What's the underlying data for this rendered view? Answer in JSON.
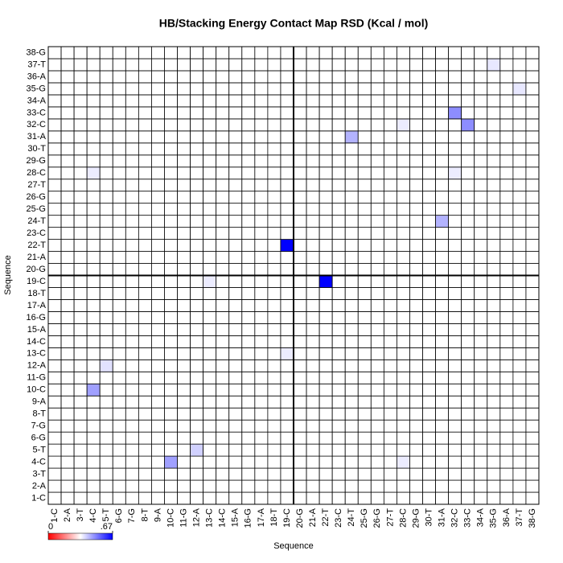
{
  "chart_data": {
    "type": "heatmap",
    "title": "HB/Stacking Energy Contact Map RSD (Kcal / mol)",
    "xlabel": "Sequence",
    "ylabel": "Sequence",
    "categories": [
      "1-C",
      "2-A",
      "3-T",
      "4-C",
      "5-T",
      "6-G",
      "7-G",
      "8-T",
      "9-A",
      "10-C",
      "11-G",
      "12-A",
      "13-C",
      "14-C",
      "15-A",
      "16-G",
      "17-A",
      "18-T",
      "19-C",
      "20-G",
      "21-A",
      "22-T",
      "23-C",
      "24-T",
      "25-G",
      "26-G",
      "27-T",
      "28-C",
      "29-G",
      "30-T",
      "31-A",
      "32-C",
      "33-C",
      "34-A",
      "35-G",
      "36-A",
      "37-T",
      "38-G"
    ],
    "color": "#0000ff",
    "zlim": [
      0,
      0.67
    ],
    "colorbar_ticks": [
      0,
      {
        "value": 0.67,
        "label": ".67"
      }
    ],
    "values": [
      [
        0,
        0,
        0,
        0,
        0,
        0,
        0,
        0,
        0,
        0,
        0,
        0,
        0,
        0,
        0,
        0,
        0,
        0,
        0,
        0,
        0,
        0,
        0,
        0,
        0,
        0,
        0,
        0,
        0,
        0,
        0,
        0,
        0,
        0,
        0,
        0,
        0,
        0
      ],
      [
        0,
        0,
        0,
        0,
        0,
        0,
        0,
        0,
        0,
        0,
        0,
        0,
        0,
        0,
        0,
        0,
        0,
        0,
        0,
        0,
        0,
        0,
        0,
        0,
        0,
        0,
        0,
        0,
        0,
        0,
        0,
        0,
        0,
        0,
        0,
        0,
        0,
        0
      ],
      [
        0,
        0,
        0,
        0,
        0,
        0,
        0,
        0,
        0,
        0,
        0,
        0,
        0,
        0,
        0,
        0,
        0,
        0,
        0,
        0,
        0,
        0,
        0,
        0,
        0,
        0,
        0,
        0,
        0,
        0,
        0,
        0,
        0,
        0,
        0,
        0,
        0,
        0
      ],
      [
        0,
        0,
        0,
        0,
        0,
        0,
        0,
        0,
        0,
        0.25,
        0,
        0,
        0,
        0,
        0,
        0,
        0,
        0,
        0,
        0,
        0,
        0,
        0,
        0,
        0,
        0,
        0,
        0.05,
        0,
        0,
        0,
        0,
        0,
        0,
        0,
        0,
        0,
        0
      ],
      [
        0,
        0,
        0,
        0,
        0,
        0,
        0,
        0,
        0,
        0,
        0,
        0.12,
        0,
        0,
        0,
        0,
        0,
        0,
        0,
        0,
        0,
        0,
        0,
        0,
        0,
        0,
        0,
        0,
        0,
        0,
        0,
        0,
        0,
        0,
        0,
        0,
        0,
        0
      ],
      [
        0,
        0,
        0,
        0,
        0,
        0,
        0,
        0,
        0,
        0,
        0,
        0,
        0,
        0,
        0,
        0,
        0,
        0,
        0,
        0,
        0,
        0,
        0,
        0,
        0,
        0,
        0,
        0,
        0,
        0,
        0,
        0,
        0,
        0,
        0,
        0,
        0,
        0
      ],
      [
        0,
        0,
        0,
        0,
        0,
        0,
        0,
        0,
        0,
        0,
        0,
        0,
        0,
        0,
        0,
        0,
        0,
        0,
        0,
        0,
        0,
        0,
        0,
        0,
        0,
        0,
        0,
        0,
        0,
        0,
        0,
        0,
        0,
        0,
        0,
        0,
        0,
        0
      ],
      [
        0,
        0,
        0,
        0,
        0,
        0,
        0,
        0,
        0,
        0,
        0,
        0,
        0,
        0,
        0,
        0,
        0,
        0,
        0,
        0,
        0,
        0,
        0,
        0,
        0,
        0,
        0,
        0,
        0,
        0,
        0,
        0,
        0,
        0,
        0,
        0,
        0,
        0
      ],
      [
        0,
        0,
        0,
        0,
        0,
        0,
        0,
        0,
        0,
        0,
        0,
        0,
        0,
        0,
        0,
        0,
        0,
        0,
        0,
        0,
        0,
        0,
        0,
        0,
        0,
        0,
        0,
        0,
        0,
        0,
        0,
        0,
        0,
        0,
        0,
        0,
        0,
        0
      ],
      [
        0,
        0,
        0,
        0.25,
        0,
        0,
        0,
        0,
        0,
        0,
        0,
        0,
        0,
        0,
        0,
        0,
        0,
        0,
        0,
        0,
        0,
        0,
        0,
        0,
        0,
        0,
        0,
        0,
        0,
        0,
        0,
        0,
        0,
        0,
        0,
        0,
        0,
        0
      ],
      [
        0,
        0,
        0,
        0,
        0,
        0,
        0,
        0,
        0,
        0,
        0,
        0,
        0,
        0,
        0,
        0,
        0,
        0,
        0,
        0,
        0,
        0,
        0,
        0,
        0,
        0,
        0,
        0,
        0,
        0,
        0,
        0,
        0,
        0,
        0,
        0,
        0,
        0
      ],
      [
        0,
        0,
        0,
        0,
        0.08,
        0,
        0,
        0,
        0,
        0,
        0,
        0,
        0,
        0,
        0,
        0,
        0,
        0,
        0,
        0,
        0,
        0,
        0,
        0,
        0,
        0,
        0,
        0,
        0,
        0,
        0,
        0,
        0,
        0,
        0,
        0,
        0,
        0
      ],
      [
        0,
        0,
        0,
        0,
        0,
        0,
        0,
        0,
        0,
        0,
        0,
        0,
        0,
        0,
        0,
        0,
        0,
        0,
        0.05,
        0,
        0,
        0,
        0,
        0,
        0,
        0,
        0,
        0,
        0,
        0,
        0,
        0,
        0,
        0,
        0,
        0,
        0,
        0
      ],
      [
        0,
        0,
        0,
        0,
        0,
        0,
        0,
        0,
        0,
        0,
        0,
        0,
        0,
        0,
        0,
        0,
        0,
        0,
        0,
        0,
        0,
        0,
        0,
        0,
        0,
        0,
        0,
        0,
        0,
        0,
        0,
        0,
        0,
        0,
        0,
        0,
        0,
        0
      ],
      [
        0,
        0,
        0,
        0,
        0,
        0,
        0,
        0,
        0,
        0,
        0,
        0,
        0,
        0,
        0,
        0,
        0,
        0,
        0,
        0,
        0,
        0,
        0,
        0,
        0,
        0,
        0,
        0,
        0,
        0,
        0,
        0,
        0,
        0,
        0,
        0,
        0,
        0
      ],
      [
        0,
        0,
        0,
        0,
        0,
        0,
        0,
        0,
        0,
        0,
        0,
        0,
        0,
        0,
        0,
        0,
        0,
        0,
        0,
        0,
        0,
        0,
        0,
        0,
        0,
        0,
        0,
        0,
        0,
        0,
        0,
        0,
        0,
        0,
        0,
        0,
        0,
        0
      ],
      [
        0,
        0,
        0,
        0,
        0,
        0,
        0,
        0,
        0,
        0,
        0,
        0,
        0,
        0,
        0,
        0,
        0,
        0,
        0,
        0,
        0,
        0,
        0,
        0,
        0,
        0,
        0,
        0,
        0,
        0,
        0,
        0,
        0,
        0,
        0,
        0,
        0,
        0
      ],
      [
        0,
        0,
        0,
        0,
        0,
        0,
        0,
        0,
        0,
        0,
        0,
        0,
        0,
        0,
        0,
        0,
        0,
        0,
        0,
        0,
        0,
        0,
        0,
        0,
        0,
        0,
        0,
        0,
        0,
        0,
        0,
        0,
        0,
        0,
        0,
        0,
        0,
        0
      ],
      [
        0,
        0,
        0,
        0,
        0,
        0,
        0,
        0,
        0,
        0,
        0,
        0,
        0.05,
        0,
        0,
        0,
        0,
        0,
        0,
        0,
        0,
        0.67,
        0,
        0,
        0,
        0,
        0,
        0,
        0,
        0,
        0,
        0,
        0,
        0,
        0,
        0,
        0,
        0
      ],
      [
        0,
        0,
        0,
        0,
        0,
        0,
        0,
        0,
        0,
        0,
        0,
        0,
        0,
        0,
        0,
        0,
        0,
        0,
        0,
        0,
        0,
        0,
        0,
        0,
        0,
        0,
        0,
        0,
        0,
        0,
        0,
        0,
        0,
        0,
        0,
        0,
        0,
        0
      ],
      [
        0,
        0,
        0,
        0,
        0,
        0,
        0,
        0,
        0,
        0,
        0,
        0,
        0,
        0,
        0,
        0,
        0,
        0,
        0,
        0,
        0,
        0,
        0,
        0,
        0,
        0,
        0,
        0,
        0,
        0,
        0,
        0,
        0,
        0,
        0,
        0,
        0,
        0
      ],
      [
        0,
        0,
        0,
        0,
        0,
        0,
        0,
        0,
        0,
        0,
        0,
        0,
        0,
        0,
        0,
        0,
        0,
        0,
        0.67,
        0,
        0,
        0,
        0,
        0,
        0,
        0,
        0,
        0,
        0,
        0,
        0,
        0,
        0,
        0,
        0,
        0,
        0,
        0
      ],
      [
        0,
        0,
        0,
        0,
        0,
        0,
        0,
        0,
        0,
        0,
        0,
        0,
        0,
        0,
        0,
        0,
        0,
        0,
        0,
        0,
        0,
        0,
        0,
        0,
        0,
        0,
        0,
        0,
        0,
        0,
        0,
        0,
        0,
        0,
        0,
        0,
        0,
        0
      ],
      [
        0,
        0,
        0,
        0,
        0,
        0,
        0,
        0,
        0,
        0,
        0,
        0,
        0,
        0,
        0,
        0,
        0,
        0,
        0,
        0,
        0,
        0,
        0,
        0,
        0,
        0,
        0,
        0,
        0,
        0,
        0.2,
        0,
        0,
        0,
        0,
        0,
        0,
        0
      ],
      [
        0,
        0,
        0,
        0,
        0,
        0,
        0,
        0,
        0,
        0,
        0,
        0,
        0,
        0,
        0,
        0,
        0,
        0,
        0,
        0,
        0,
        0,
        0,
        0,
        0,
        0,
        0,
        0,
        0,
        0,
        0,
        0,
        0,
        0,
        0,
        0,
        0,
        0
      ],
      [
        0,
        0,
        0,
        0,
        0,
        0,
        0,
        0,
        0,
        0,
        0,
        0,
        0,
        0,
        0,
        0,
        0,
        0,
        0,
        0,
        0,
        0,
        0,
        0,
        0,
        0,
        0,
        0,
        0,
        0,
        0,
        0,
        0,
        0,
        0,
        0,
        0,
        0
      ],
      [
        0,
        0,
        0,
        0,
        0,
        0,
        0,
        0,
        0,
        0,
        0,
        0,
        0,
        0,
        0,
        0,
        0,
        0,
        0,
        0,
        0,
        0,
        0,
        0,
        0,
        0,
        0,
        0,
        0,
        0,
        0,
        0,
        0,
        0,
        0,
        0,
        0,
        0
      ],
      [
        0,
        0,
        0,
        0.05,
        0,
        0,
        0,
        0,
        0,
        0,
        0,
        0,
        0,
        0,
        0,
        0,
        0,
        0,
        0,
        0,
        0,
        0,
        0,
        0,
        0,
        0,
        0,
        0,
        0,
        0,
        0,
        0.05,
        0,
        0,
        0,
        0,
        0,
        0
      ],
      [
        0,
        0,
        0,
        0,
        0,
        0,
        0,
        0,
        0,
        0,
        0,
        0,
        0,
        0,
        0,
        0,
        0,
        0,
        0,
        0,
        0,
        0,
        0,
        0,
        0,
        0,
        0,
        0,
        0,
        0,
        0,
        0,
        0,
        0,
        0,
        0,
        0,
        0
      ],
      [
        0,
        0,
        0,
        0,
        0,
        0,
        0,
        0,
        0,
        0,
        0,
        0,
        0,
        0,
        0,
        0,
        0,
        0,
        0,
        0,
        0,
        0,
        0,
        0,
        0,
        0,
        0,
        0,
        0,
        0,
        0,
        0,
        0,
        0,
        0,
        0,
        0,
        0
      ],
      [
        0,
        0,
        0,
        0,
        0,
        0,
        0,
        0,
        0,
        0,
        0,
        0,
        0,
        0,
        0,
        0,
        0,
        0,
        0,
        0,
        0,
        0,
        0,
        0.2,
        0,
        0,
        0,
        0,
        0,
        0,
        0,
        0,
        0,
        0,
        0,
        0,
        0,
        0
      ],
      [
        0,
        0,
        0,
        0,
        0,
        0,
        0,
        0,
        0,
        0,
        0,
        0,
        0,
        0,
        0,
        0,
        0,
        0,
        0,
        0,
        0,
        0,
        0,
        0,
        0,
        0,
        0,
        0.05,
        0,
        0,
        0,
        0,
        0.3,
        0,
        0,
        0,
        0,
        0
      ],
      [
        0,
        0,
        0,
        0,
        0,
        0,
        0,
        0,
        0,
        0,
        0,
        0,
        0,
        0,
        0,
        0,
        0,
        0,
        0,
        0,
        0,
        0,
        0,
        0,
        0,
        0,
        0,
        0,
        0,
        0,
        0,
        0.3,
        0,
        0,
        0,
        0,
        0,
        0
      ],
      [
        0,
        0,
        0,
        0,
        0,
        0,
        0,
        0,
        0,
        0,
        0,
        0,
        0,
        0,
        0,
        0,
        0,
        0,
        0,
        0,
        0,
        0,
        0,
        0,
        0,
        0,
        0,
        0,
        0,
        0,
        0,
        0,
        0,
        0,
        0,
        0,
        0,
        0
      ],
      [
        0,
        0,
        0,
        0,
        0,
        0,
        0,
        0,
        0,
        0,
        0,
        0,
        0,
        0,
        0,
        0,
        0,
        0,
        0,
        0,
        0,
        0,
        0,
        0,
        0,
        0,
        0,
        0,
        0,
        0,
        0,
        0,
        0,
        0,
        0,
        0,
        0.06,
        0
      ],
      [
        0,
        0,
        0,
        0,
        0,
        0,
        0,
        0,
        0,
        0,
        0,
        0,
        0,
        0,
        0,
        0,
        0,
        0,
        0,
        0,
        0,
        0,
        0,
        0,
        0,
        0,
        0,
        0,
        0,
        0,
        0,
        0,
        0,
        0,
        0,
        0,
        0,
        0
      ],
      [
        0,
        0,
        0,
        0,
        0,
        0,
        0,
        0,
        0,
        0,
        0,
        0,
        0,
        0,
        0,
        0,
        0,
        0,
        0,
        0,
        0,
        0,
        0,
        0,
        0,
        0,
        0,
        0,
        0,
        0,
        0,
        0,
        0,
        0,
        0.06,
        0,
        0,
        0
      ],
      [
        0,
        0,
        0,
        0,
        0,
        0,
        0,
        0,
        0,
        0,
        0,
        0,
        0,
        0,
        0,
        0,
        0,
        0,
        0,
        0,
        0,
        0,
        0,
        0,
        0,
        0,
        0,
        0,
        0,
        0,
        0,
        0,
        0,
        0,
        0,
        0,
        0,
        0
      ]
    ]
  }
}
